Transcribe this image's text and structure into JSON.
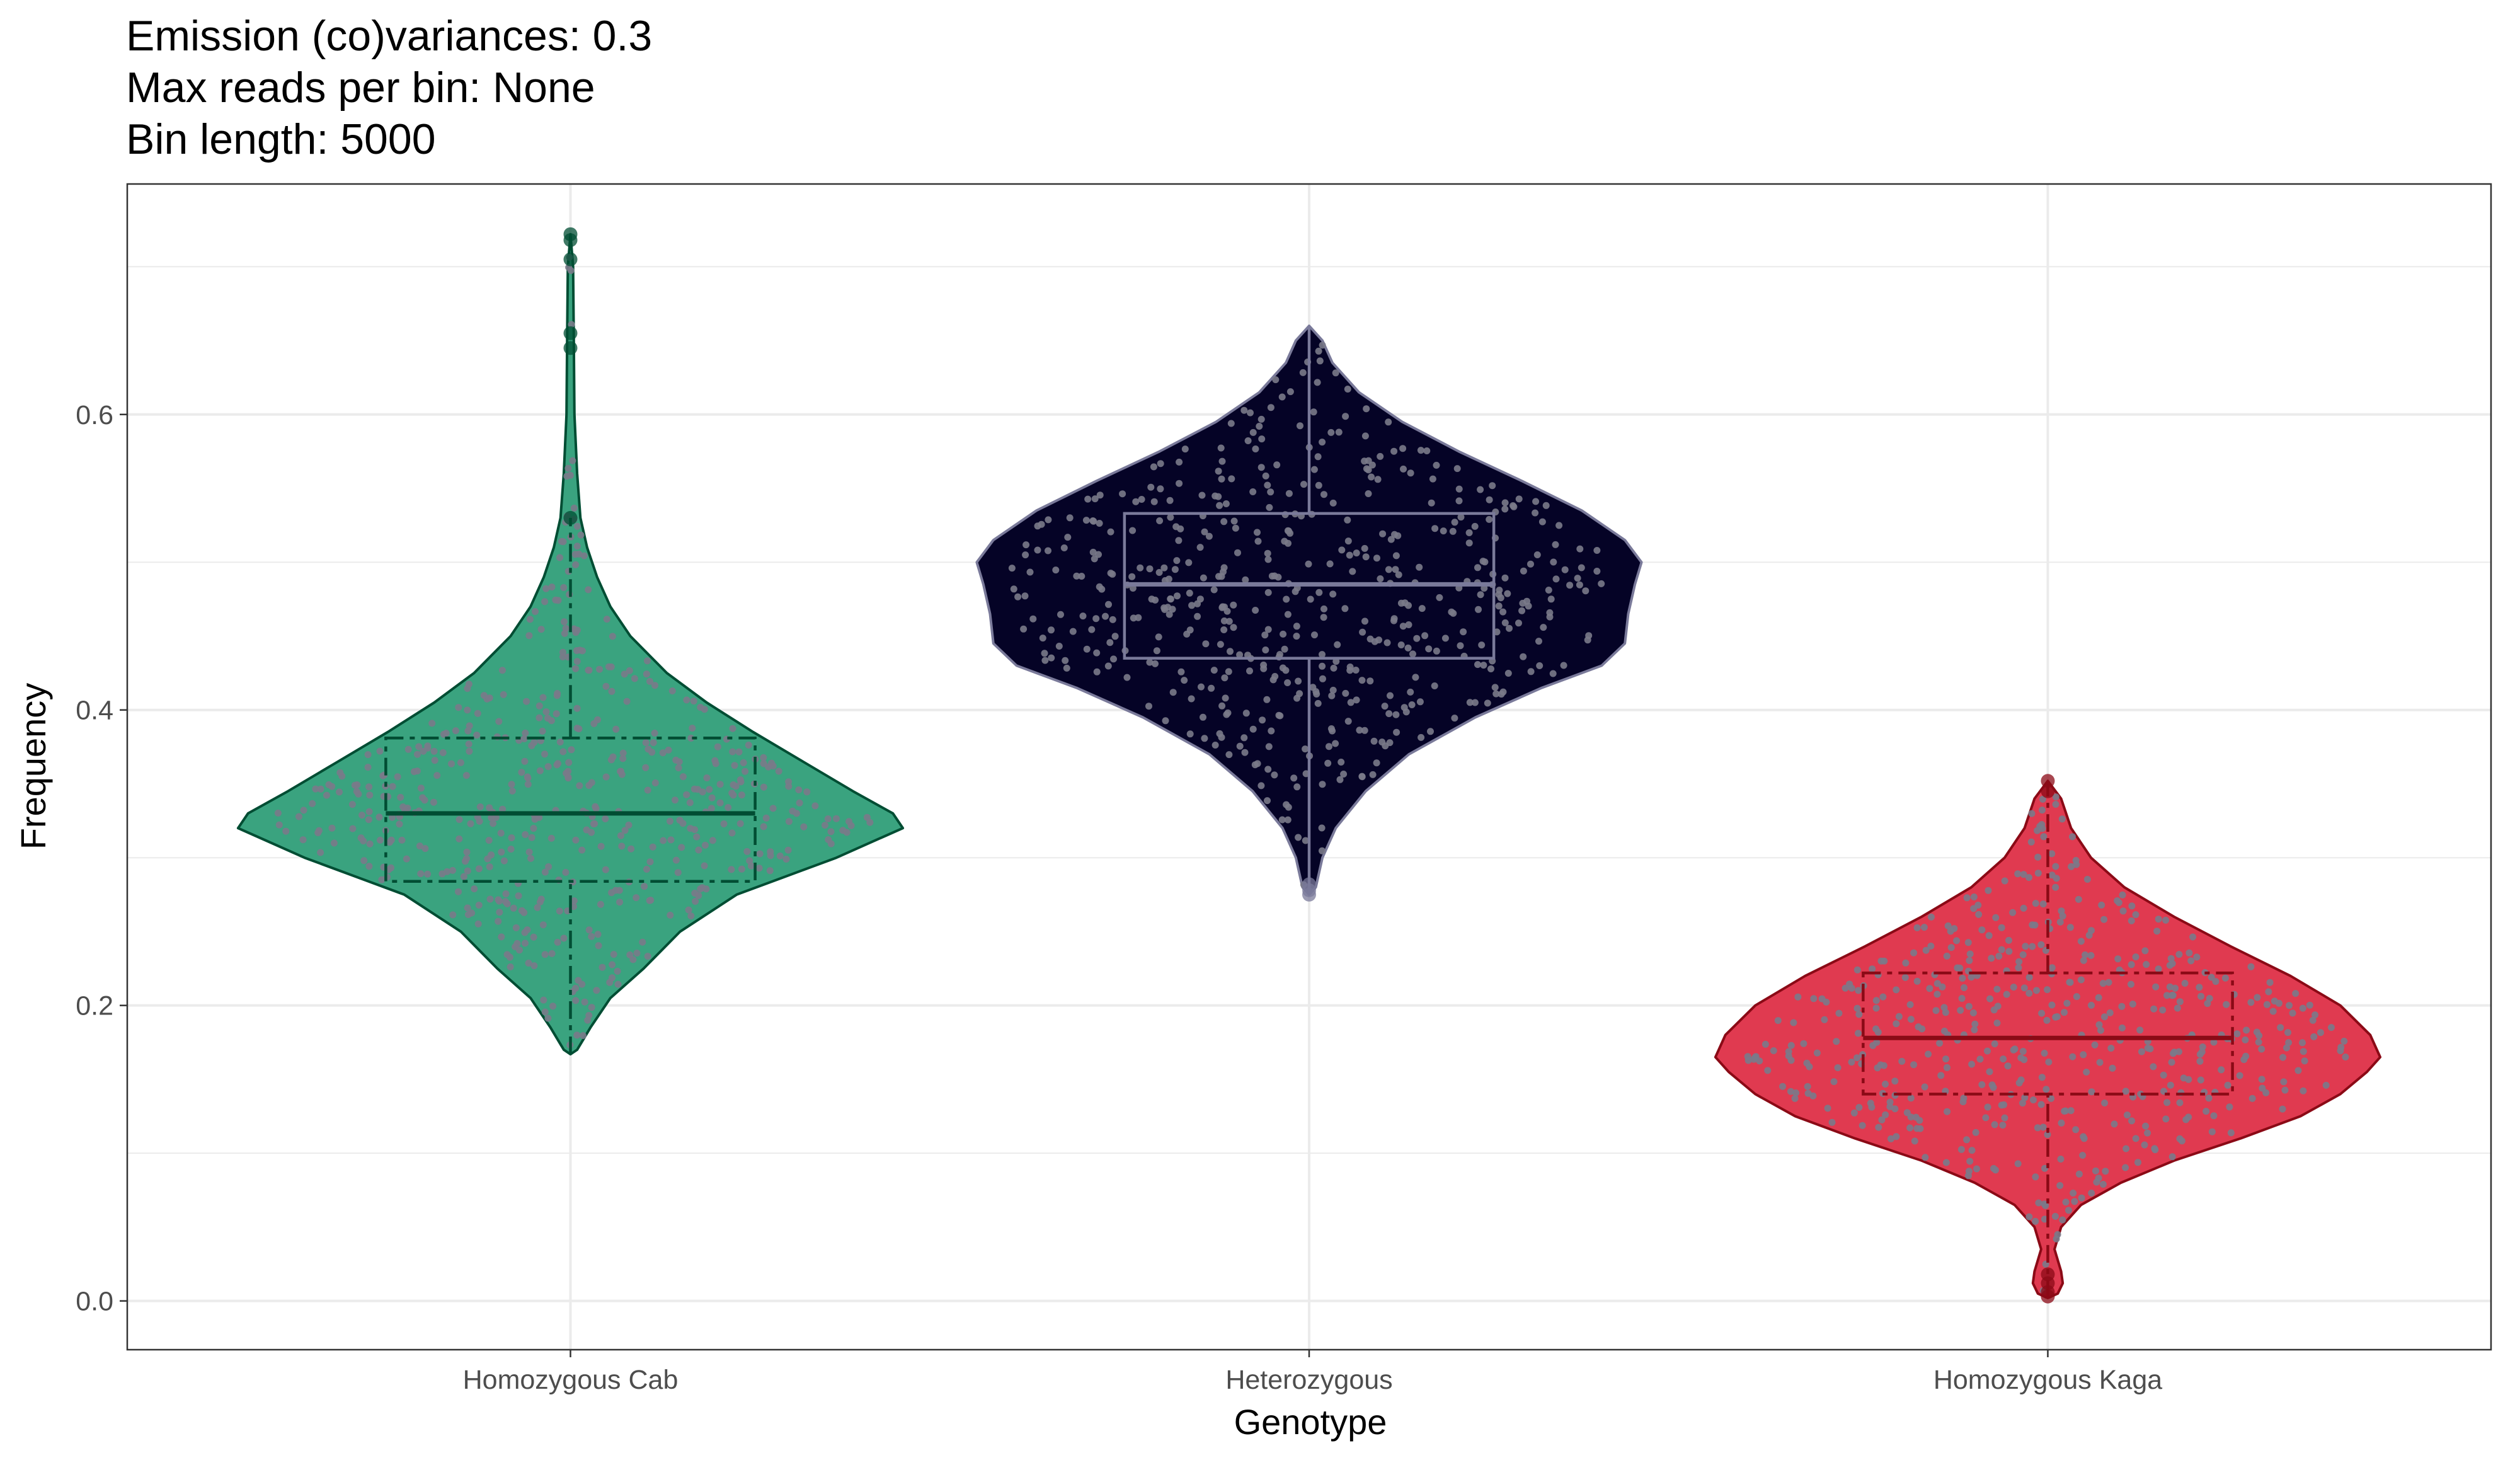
{
  "chart_data": {
    "type": "violin",
    "title_lines": [
      "Emission (co)variances: 0.3",
      "Max reads per bin: None",
      "Bin length: 5000"
    ],
    "xlabel": "Genotype",
    "ylabel": "Frequency",
    "categories": [
      "Homozygous Cab",
      "Heterozygous",
      "Homozygous Kaga"
    ],
    "ylim": [
      -0.033,
      0.756
    ],
    "y_ticks": [
      0.0,
      0.2,
      0.4,
      0.6
    ],
    "y_tick_labels": [
      "0.0",
      "0.2",
      "0.4",
      "0.6"
    ],
    "grid": true,
    "point_color": "#7a7a8a",
    "groups": [
      {
        "name": "Homozygous Cab",
        "fill": "#3aa37f",
        "stroke": "#004d33",
        "point_color": "#7a7a8a",
        "min": 0.167,
        "max": 0.722,
        "box": {
          "q1": 0.284,
          "median": 0.33,
          "q3": 0.381
        },
        "whisker": [
          0.167,
          0.53
        ],
        "half_width_profile": [
          [
            0.167,
            0.0
          ],
          [
            0.17,
            0.02
          ],
          [
            0.185,
            0.06
          ],
          [
            0.205,
            0.12
          ],
          [
            0.225,
            0.22
          ],
          [
            0.25,
            0.33
          ],
          [
            0.275,
            0.5
          ],
          [
            0.3,
            0.8
          ],
          [
            0.315,
            0.95
          ],
          [
            0.32,
            1.0
          ],
          [
            0.33,
            0.97
          ],
          [
            0.345,
            0.85
          ],
          [
            0.365,
            0.7
          ],
          [
            0.385,
            0.55
          ],
          [
            0.405,
            0.41
          ],
          [
            0.425,
            0.29
          ],
          [
            0.45,
            0.18
          ],
          [
            0.47,
            0.12
          ],
          [
            0.49,
            0.08
          ],
          [
            0.51,
            0.05
          ],
          [
            0.53,
            0.03
          ],
          [
            0.56,
            0.02
          ],
          [
            0.6,
            0.012
          ],
          [
            0.65,
            0.01
          ],
          [
            0.7,
            0.008
          ],
          [
            0.722,
            0.0
          ]
        ],
        "outliers": [
          0.722,
          0.718,
          0.705,
          0.655,
          0.645,
          0.53
        ]
      },
      {
        "name": "Heterozygous",
        "fill": "#050326",
        "stroke": "#7a7a9a",
        "point_color": "#7a7a8a",
        "min": 0.275,
        "max": 0.66,
        "box": {
          "q1": 0.435,
          "median": 0.485,
          "q3": 0.533
        },
        "whisker": [
          0.275,
          0.66
        ],
        "half_width_profile": [
          [
            0.275,
            0.0
          ],
          [
            0.28,
            0.02
          ],
          [
            0.3,
            0.04
          ],
          [
            0.32,
            0.08
          ],
          [
            0.345,
            0.17
          ],
          [
            0.37,
            0.3
          ],
          [
            0.395,
            0.5
          ],
          [
            0.415,
            0.7
          ],
          [
            0.43,
            0.88
          ],
          [
            0.445,
            0.95
          ],
          [
            0.465,
            0.96
          ],
          [
            0.485,
            0.98
          ],
          [
            0.5,
            1.0
          ],
          [
            0.515,
            0.95
          ],
          [
            0.535,
            0.82
          ],
          [
            0.555,
            0.64
          ],
          [
            0.575,
            0.45
          ],
          [
            0.595,
            0.28
          ],
          [
            0.615,
            0.15
          ],
          [
            0.635,
            0.07
          ],
          [
            0.65,
            0.04
          ],
          [
            0.66,
            0.0
          ]
        ],
        "outliers": [
          0.282,
          0.278,
          0.275
        ]
      },
      {
        "name": "Homozygous Kaga",
        "fill": "#e03a50",
        "stroke": "#8b0a16",
        "point_color": "#7a7a8a",
        "min": 0.002,
        "max": 0.352,
        "box": {
          "q1": 0.14,
          "median": 0.178,
          "q3": 0.222
        },
        "whisker": [
          0.002,
          0.352
        ],
        "half_width_profile": [
          [
            0.002,
            0.0
          ],
          [
            0.005,
            0.03
          ],
          [
            0.012,
            0.045
          ],
          [
            0.02,
            0.04
          ],
          [
            0.035,
            0.02
          ],
          [
            0.05,
            0.04
          ],
          [
            0.065,
            0.1
          ],
          [
            0.08,
            0.22
          ],
          [
            0.095,
            0.38
          ],
          [
            0.11,
            0.58
          ],
          [
            0.125,
            0.76
          ],
          [
            0.14,
            0.88
          ],
          [
            0.155,
            0.96
          ],
          [
            0.165,
            1.0
          ],
          [
            0.18,
            0.97
          ],
          [
            0.2,
            0.88
          ],
          [
            0.22,
            0.73
          ],
          [
            0.24,
            0.55
          ],
          [
            0.26,
            0.38
          ],
          [
            0.28,
            0.23
          ],
          [
            0.3,
            0.13
          ],
          [
            0.32,
            0.07
          ],
          [
            0.34,
            0.04
          ],
          [
            0.352,
            0.0
          ]
        ],
        "outliers": [
          0.352,
          0.345,
          0.018,
          0.012,
          0.006,
          0.003
        ]
      }
    ]
  }
}
